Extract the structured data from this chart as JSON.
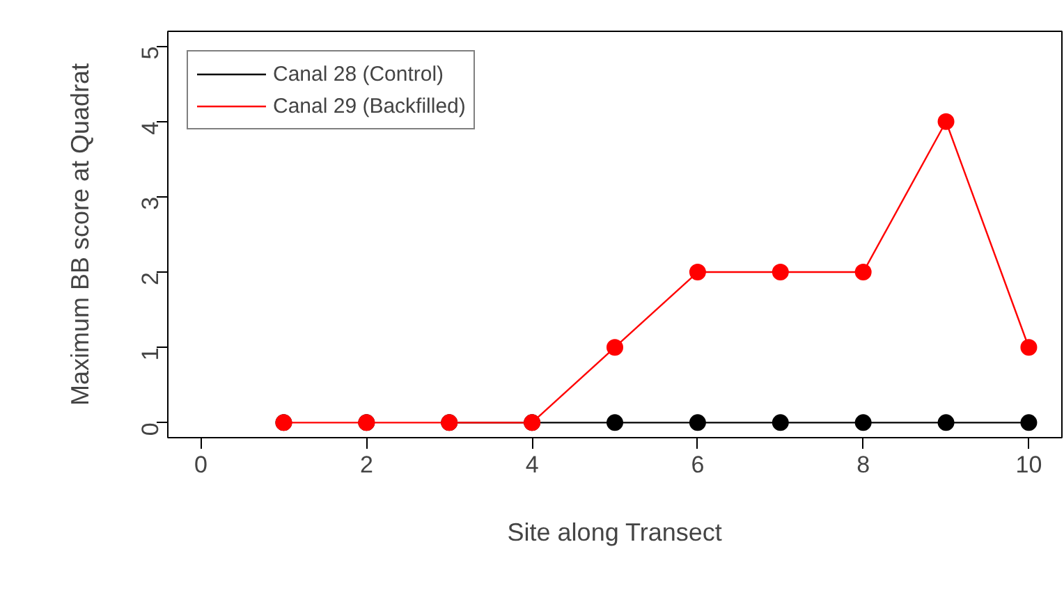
{
  "chart_data": {
    "type": "line",
    "xlabel": "Site along Transect",
    "ylabel": "Maximum BB score at Quadrat",
    "x": [
      1,
      2,
      3,
      4,
      5,
      6,
      7,
      8,
      9,
      10
    ],
    "series": [
      {
        "name": "Canal 28 (Control)",
        "color": "#000000",
        "values": [
          null,
          null,
          0,
          0,
          0,
          0,
          0,
          0,
          0,
          0
        ]
      },
      {
        "name": "Canal 29 (Backfilled)",
        "color": "#ff0000",
        "values": [
          0,
          0,
          0,
          0,
          1,
          2,
          2,
          2,
          4,
          1
        ]
      }
    ],
    "xlim": [
      -0.4,
      10.4
    ],
    "ylim": [
      -0.2,
      5.2
    ],
    "xticks": [
      0,
      2,
      4,
      6,
      8,
      10
    ],
    "yticks": [
      0,
      1,
      2,
      3,
      4,
      5
    ],
    "grid": false,
    "legend": "top left",
    "marker": "circle",
    "line_style": "solid"
  }
}
